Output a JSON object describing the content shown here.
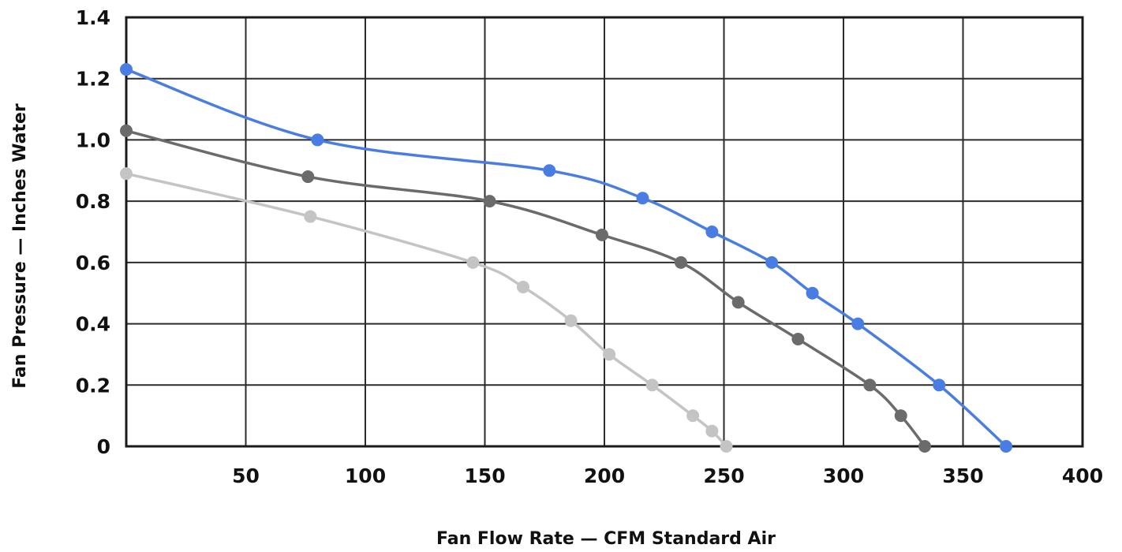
{
  "chart_data": {
    "type": "line",
    "title": "",
    "xlabel": "Fan Flow Rate — CFM Standard Air",
    "ylabel": "Fan Pressure — Inches Water",
    "xlim": [
      0,
      400
    ],
    "ylim": [
      0,
      1.4
    ],
    "x_ticks": [
      50,
      100,
      150,
      200,
      250,
      300,
      350,
      400
    ],
    "x_tick_labels": [
      "50",
      "100",
      "150",
      "200",
      "250",
      "300",
      "350",
      "400"
    ],
    "y_ticks": [
      0,
      0.2,
      0.4,
      0.6,
      0.8,
      1.0,
      1.2,
      1.4
    ],
    "y_tick_labels": [
      "0",
      "0.2",
      "0.4",
      "0.6",
      "0.8",
      "1.0",
      "1.2",
      "1.4"
    ],
    "grid": true,
    "legend": "none",
    "series": [
      {
        "color": "#4a7de3",
        "x": [
          0,
          80,
          177,
          216,
          245,
          270,
          287,
          306,
          340,
          368
        ],
        "y": [
          1.23,
          1.0,
          0.9,
          0.81,
          0.7,
          0.6,
          0.5,
          0.4,
          0.2,
          0.0
        ]
      },
      {
        "color": "#6b6b6b",
        "x": [
          0,
          76,
          152,
          199,
          232,
          256,
          281,
          311,
          324,
          334
        ],
        "y": [
          1.03,
          0.88,
          0.8,
          0.69,
          0.6,
          0.47,
          0.35,
          0.2,
          0.1,
          0.0
        ]
      },
      {
        "color": "#c4c4c4",
        "x": [
          0,
          77,
          145,
          166,
          186,
          202,
          220,
          237,
          245,
          251
        ],
        "y": [
          0.89,
          0.75,
          0.6,
          0.52,
          0.41,
          0.3,
          0.2,
          0.1,
          0.05,
          0.0
        ]
      }
    ]
  }
}
